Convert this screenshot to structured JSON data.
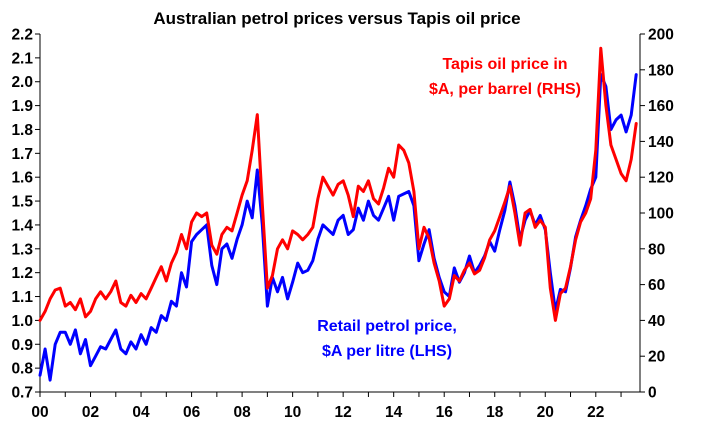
{
  "chart_data": {
    "type": "line",
    "title": "Australian petrol prices versus Tapis oil price",
    "x_range": [
      2000,
      2023.75
    ],
    "x_tick_labels": [
      "00",
      "02",
      "04",
      "06",
      "08",
      "10",
      "12",
      "14",
      "16",
      "18",
      "20",
      "22"
    ],
    "x_tick_values": [
      2000,
      2002,
      2004,
      2006,
      2008,
      2010,
      2012,
      2014,
      2016,
      2018,
      2020,
      2022
    ],
    "y_left": {
      "range": [
        0.7,
        2.2
      ],
      "tick_values": [
        0.7,
        0.8,
        0.9,
        1.0,
        1.1,
        1.2,
        1.3,
        1.4,
        1.5,
        1.6,
        1.7,
        1.8,
        1.9,
        2.0,
        2.1,
        2.2
      ],
      "tick_labels": [
        "0.7",
        "0.8",
        "0.9",
        "1.0",
        "1.1",
        "1.2",
        "1.3",
        "1.4",
        "1.5",
        "1.6",
        "1.7",
        "1.8",
        "1.9",
        "2.0",
        "2.1",
        "2.2"
      ]
    },
    "y_right": {
      "range": [
        0,
        200
      ],
      "tick_values": [
        0,
        20,
        40,
        60,
        80,
        100,
        120,
        140,
        160,
        180,
        200
      ],
      "tick_labels": [
        "0",
        "20",
        "40",
        "60",
        "80",
        "100",
        "120",
        "140",
        "160",
        "180",
        "200"
      ]
    },
    "series": [
      {
        "name": "Retail petrol price, $A per litre (LHS)",
        "label_lines": [
          "Retail petrol price,",
          "$A per litre (LHS)"
        ],
        "axis": "left",
        "color": "#0000ff",
        "points": [
          [
            2000.0,
            0.77
          ],
          [
            2000.2,
            0.88
          ],
          [
            2000.4,
            0.75
          ],
          [
            2000.6,
            0.9
          ],
          [
            2000.8,
            0.95
          ],
          [
            2001.0,
            0.95
          ],
          [
            2001.2,
            0.9
          ],
          [
            2001.4,
            0.96
          ],
          [
            2001.6,
            0.86
          ],
          [
            2001.8,
            0.92
          ],
          [
            2002.0,
            0.81
          ],
          [
            2002.2,
            0.85
          ],
          [
            2002.4,
            0.89
          ],
          [
            2002.6,
            0.88
          ],
          [
            2002.8,
            0.92
          ],
          [
            2003.0,
            0.96
          ],
          [
            2003.2,
            0.88
          ],
          [
            2003.4,
            0.86
          ],
          [
            2003.6,
            0.91
          ],
          [
            2003.8,
            0.88
          ],
          [
            2004.0,
            0.94
          ],
          [
            2004.2,
            0.9
          ],
          [
            2004.4,
            0.97
          ],
          [
            2004.6,
            0.95
          ],
          [
            2004.8,
            1.02
          ],
          [
            2005.0,
            1.0
          ],
          [
            2005.2,
            1.08
          ],
          [
            2005.4,
            1.06
          ],
          [
            2005.6,
            1.2
          ],
          [
            2005.8,
            1.14
          ],
          [
            2006.0,
            1.33
          ],
          [
            2006.2,
            1.36
          ],
          [
            2006.4,
            1.38
          ],
          [
            2006.6,
            1.4
          ],
          [
            2006.8,
            1.23
          ],
          [
            2007.0,
            1.15
          ],
          [
            2007.2,
            1.3
          ],
          [
            2007.4,
            1.32
          ],
          [
            2007.6,
            1.26
          ],
          [
            2007.8,
            1.34
          ],
          [
            2008.0,
            1.4
          ],
          [
            2008.2,
            1.5
          ],
          [
            2008.4,
            1.43
          ],
          [
            2008.6,
            1.63
          ],
          [
            2008.8,
            1.4
          ],
          [
            2009.0,
            1.06
          ],
          [
            2009.2,
            1.18
          ],
          [
            2009.4,
            1.12
          ],
          [
            2009.6,
            1.18
          ],
          [
            2009.8,
            1.09
          ],
          [
            2010.0,
            1.16
          ],
          [
            2010.2,
            1.24
          ],
          [
            2010.4,
            1.2
          ],
          [
            2010.6,
            1.21
          ],
          [
            2010.8,
            1.25
          ],
          [
            2011.0,
            1.34
          ],
          [
            2011.2,
            1.4
          ],
          [
            2011.4,
            1.38
          ],
          [
            2011.6,
            1.36
          ],
          [
            2011.8,
            1.42
          ],
          [
            2012.0,
            1.44
          ],
          [
            2012.2,
            1.36
          ],
          [
            2012.4,
            1.38
          ],
          [
            2012.6,
            1.47
          ],
          [
            2012.8,
            1.42
          ],
          [
            2013.0,
            1.5
          ],
          [
            2013.2,
            1.44
          ],
          [
            2013.4,
            1.42
          ],
          [
            2013.6,
            1.47
          ],
          [
            2013.8,
            1.52
          ],
          [
            2014.0,
            1.42
          ],
          [
            2014.2,
            1.52
          ],
          [
            2014.4,
            1.53
          ],
          [
            2014.6,
            1.54
          ],
          [
            2014.8,
            1.48
          ],
          [
            2015.0,
            1.25
          ],
          [
            2015.2,
            1.32
          ],
          [
            2015.4,
            1.38
          ],
          [
            2015.6,
            1.26
          ],
          [
            2015.8,
            1.18
          ],
          [
            2016.0,
            1.12
          ],
          [
            2016.2,
            1.1
          ],
          [
            2016.4,
            1.22
          ],
          [
            2016.6,
            1.16
          ],
          [
            2016.8,
            1.2
          ],
          [
            2017.0,
            1.27
          ],
          [
            2017.2,
            1.2
          ],
          [
            2017.4,
            1.23
          ],
          [
            2017.6,
            1.27
          ],
          [
            2017.8,
            1.33
          ],
          [
            2018.0,
            1.29
          ],
          [
            2018.2,
            1.38
          ],
          [
            2018.4,
            1.46
          ],
          [
            2018.6,
            1.58
          ],
          [
            2018.8,
            1.48
          ],
          [
            2019.0,
            1.34
          ],
          [
            2019.2,
            1.42
          ],
          [
            2019.4,
            1.46
          ],
          [
            2019.6,
            1.4
          ],
          [
            2019.8,
            1.44
          ],
          [
            2020.0,
            1.38
          ],
          [
            2020.2,
            1.2
          ],
          [
            2020.4,
            1.04
          ],
          [
            2020.6,
            1.13
          ],
          [
            2020.8,
            1.12
          ],
          [
            2021.0,
            1.22
          ],
          [
            2021.2,
            1.35
          ],
          [
            2021.4,
            1.42
          ],
          [
            2021.6,
            1.48
          ],
          [
            2021.8,
            1.55
          ],
          [
            2022.0,
            1.6
          ],
          [
            2022.2,
            2.03
          ],
          [
            2022.4,
            1.98
          ],
          [
            2022.6,
            1.8
          ],
          [
            2022.8,
            1.84
          ],
          [
            2023.0,
            1.86
          ],
          [
            2023.2,
            1.79
          ],
          [
            2023.4,
            1.86
          ],
          [
            2023.6,
            2.03
          ]
        ]
      },
      {
        "name": "Tapis oil price in $A, per barrel (RHS)",
        "label_lines": [
          "Tapis oil price in",
          "$A, per barrel (RHS)"
        ],
        "axis": "right",
        "color": "#ff0000",
        "points": [
          [
            2000.0,
            40
          ],
          [
            2000.2,
            45
          ],
          [
            2000.4,
            52
          ],
          [
            2000.6,
            57
          ],
          [
            2000.8,
            58
          ],
          [
            2001.0,
            48
          ],
          [
            2001.2,
            50
          ],
          [
            2001.4,
            46
          ],
          [
            2001.6,
            52
          ],
          [
            2001.8,
            42
          ],
          [
            2002.0,
            45
          ],
          [
            2002.2,
            52
          ],
          [
            2002.4,
            56
          ],
          [
            2002.6,
            52
          ],
          [
            2002.8,
            56
          ],
          [
            2003.0,
            62
          ],
          [
            2003.2,
            50
          ],
          [
            2003.4,
            48
          ],
          [
            2003.6,
            54
          ],
          [
            2003.8,
            50
          ],
          [
            2004.0,
            55
          ],
          [
            2004.2,
            52
          ],
          [
            2004.4,
            58
          ],
          [
            2004.6,
            64
          ],
          [
            2004.8,
            70
          ],
          [
            2005.0,
            62
          ],
          [
            2005.2,
            72
          ],
          [
            2005.4,
            78
          ],
          [
            2005.6,
            88
          ],
          [
            2005.8,
            80
          ],
          [
            2006.0,
            95
          ],
          [
            2006.2,
            100
          ],
          [
            2006.4,
            98
          ],
          [
            2006.6,
            100
          ],
          [
            2006.8,
            82
          ],
          [
            2007.0,
            77
          ],
          [
            2007.2,
            88
          ],
          [
            2007.4,
            92
          ],
          [
            2007.6,
            90
          ],
          [
            2007.8,
            100
          ],
          [
            2008.0,
            110
          ],
          [
            2008.2,
            118
          ],
          [
            2008.4,
            135
          ],
          [
            2008.6,
            155
          ],
          [
            2008.8,
            105
          ],
          [
            2009.0,
            58
          ],
          [
            2009.2,
            65
          ],
          [
            2009.4,
            80
          ],
          [
            2009.6,
            85
          ],
          [
            2009.8,
            80
          ],
          [
            2010.0,
            90
          ],
          [
            2010.2,
            88
          ],
          [
            2010.4,
            85
          ],
          [
            2010.6,
            88
          ],
          [
            2010.8,
            92
          ],
          [
            2011.0,
            108
          ],
          [
            2011.2,
            120
          ],
          [
            2011.4,
            115
          ],
          [
            2011.6,
            110
          ],
          [
            2011.8,
            116
          ],
          [
            2012.0,
            118
          ],
          [
            2012.2,
            110
          ],
          [
            2012.4,
            98
          ],
          [
            2012.6,
            115
          ],
          [
            2012.8,
            112
          ],
          [
            2013.0,
            118
          ],
          [
            2013.2,
            108
          ],
          [
            2013.4,
            105
          ],
          [
            2013.6,
            114
          ],
          [
            2013.8,
            125
          ],
          [
            2014.0,
            120
          ],
          [
            2014.2,
            138
          ],
          [
            2014.4,
            135
          ],
          [
            2014.6,
            128
          ],
          [
            2014.8,
            112
          ],
          [
            2015.0,
            80
          ],
          [
            2015.2,
            92
          ],
          [
            2015.4,
            86
          ],
          [
            2015.6,
            72
          ],
          [
            2015.8,
            62
          ],
          [
            2016.0,
            48
          ],
          [
            2016.2,
            52
          ],
          [
            2016.4,
            65
          ],
          [
            2016.6,
            62
          ],
          [
            2016.8,
            68
          ],
          [
            2017.0,
            72
          ],
          [
            2017.2,
            66
          ],
          [
            2017.4,
            68
          ],
          [
            2017.6,
            75
          ],
          [
            2017.8,
            85
          ],
          [
            2018.0,
            90
          ],
          [
            2018.2,
            98
          ],
          [
            2018.4,
            106
          ],
          [
            2018.6,
            115
          ],
          [
            2018.8,
            100
          ],
          [
            2019.0,
            82
          ],
          [
            2019.2,
            100
          ],
          [
            2019.4,
            102
          ],
          [
            2019.6,
            92
          ],
          [
            2019.8,
            96
          ],
          [
            2020.0,
            92
          ],
          [
            2020.2,
            58
          ],
          [
            2020.4,
            40
          ],
          [
            2020.6,
            55
          ],
          [
            2020.8,
            58
          ],
          [
            2021.0,
            70
          ],
          [
            2021.2,
            85
          ],
          [
            2021.4,
            95
          ],
          [
            2021.6,
            100
          ],
          [
            2021.8,
            108
          ],
          [
            2022.0,
            135
          ],
          [
            2022.2,
            192
          ],
          [
            2022.4,
            160
          ],
          [
            2022.6,
            138
          ],
          [
            2022.8,
            130
          ],
          [
            2023.0,
            122
          ],
          [
            2023.2,
            118
          ],
          [
            2023.4,
            130
          ],
          [
            2023.6,
            150
          ]
        ]
      }
    ]
  }
}
